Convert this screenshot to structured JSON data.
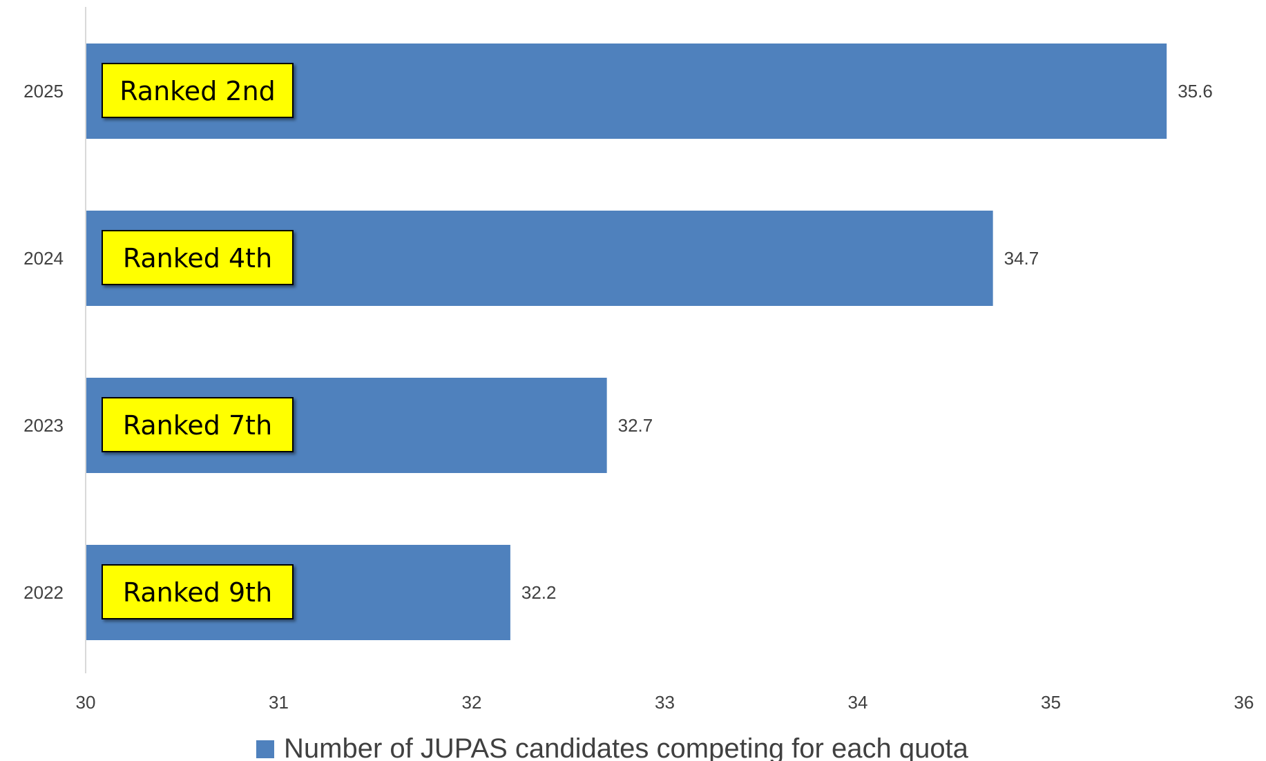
{
  "chart_data": {
    "type": "bar",
    "orientation": "horizontal",
    "categories": [
      "2025",
      "2024",
      "2023",
      "2022"
    ],
    "series": [
      {
        "name": "Number of JUPAS candidates competing for each quota",
        "values": [
          35.6,
          34.7,
          32.7,
          32.2
        ]
      }
    ],
    "annotations": [
      "Ranked 2nd",
      "Ranked 4th",
      "Ranked 7th",
      "Ranked 9th"
    ],
    "x_ticks": [
      "30",
      "31",
      "32",
      "33",
      "34",
      "35",
      "36"
    ],
    "xlim": [
      30,
      36
    ],
    "xlabel": "",
    "ylabel": "",
    "grid": false,
    "legend_position": "bottom",
    "colors": {
      "bar": "#4F81BD",
      "annotation_fill": "#FFFF00",
      "annotation_border": "#000000",
      "axis_line": "#D9D9D9"
    }
  }
}
